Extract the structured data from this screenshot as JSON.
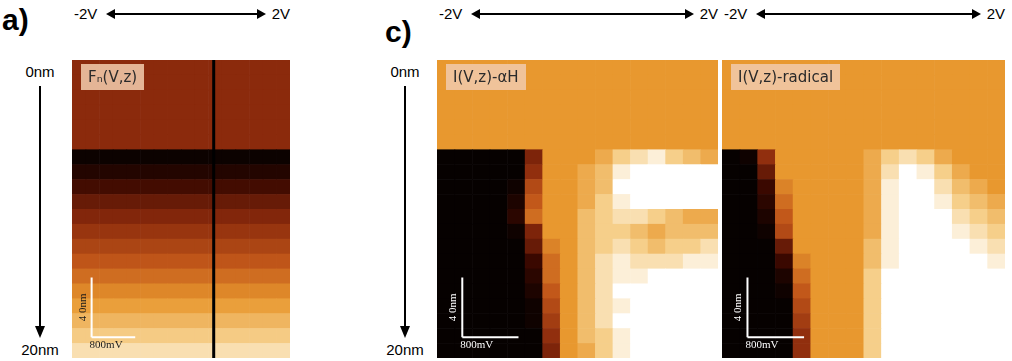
{
  "chart_data": [
    {
      "type": "heatmap",
      "title": "Fₙ(V,z)",
      "xlim": [
        -2,
        2
      ],
      "ylim": [
        0,
        20
      ],
      "tick_labels": false,
      "x_bins": [
        -2,
        -1.75,
        -1.5,
        -1.25,
        -1,
        -0.75,
        -0.5,
        -0.25,
        0,
        0.25,
        0.5,
        0.75,
        1,
        1.25,
        1.5,
        1.75,
        2
      ],
      "y_bins": [
        0,
        1,
        2,
        3,
        4,
        5,
        6,
        7,
        8,
        9,
        10,
        11,
        12,
        13,
        14,
        15,
        16,
        17,
        18,
        19,
        20
      ],
      "color_range": [
        0,
        1
      ],
      "cells": [
        [
          0.38,
          0.38,
          0.38,
          0.38,
          0.38,
          0.38,
          0.38,
          0.38,
          0.38,
          0.38,
          0.38,
          0.38,
          0.38,
          0.38,
          0.38,
          0.38
        ],
        [
          0.38,
          0.38,
          0.38,
          0.38,
          0.38,
          0.38,
          0.38,
          0.38,
          0.38,
          0.38,
          0.38,
          0.38,
          0.38,
          0.38,
          0.38,
          0.38
        ],
        [
          0.38,
          0.38,
          0.38,
          0.38,
          0.38,
          0.38,
          0.38,
          0.38,
          0.38,
          0.38,
          0.38,
          0.38,
          0.38,
          0.38,
          0.38,
          0.38
        ],
        [
          0.38,
          0.38,
          0.38,
          0.38,
          0.38,
          0.38,
          0.38,
          0.38,
          0.38,
          0.38,
          0.38,
          0.38,
          0.38,
          0.38,
          0.38,
          0.38
        ],
        [
          0.38,
          0.38,
          0.38,
          0.38,
          0.38,
          0.38,
          0.38,
          0.38,
          0.38,
          0.38,
          0.38,
          0.38,
          0.38,
          0.38,
          0.38,
          0.38
        ],
        [
          0.38,
          0.38,
          0.38,
          0.38,
          0.38,
          0.38,
          0.38,
          0.38,
          0.38,
          0.38,
          0.38,
          0.38,
          0.38,
          0.38,
          0.38,
          0.38
        ],
        [
          0.04,
          0.04,
          0.04,
          0.04,
          0.04,
          0.04,
          0.04,
          0.04,
          0.04,
          0.04,
          0.04,
          0.04,
          0.04,
          0.04,
          0.04,
          0.04
        ],
        [
          0.12,
          0.12,
          0.12,
          0.12,
          0.12,
          0.12,
          0.12,
          0.12,
          0.12,
          0.12,
          0.12,
          0.12,
          0.12,
          0.12,
          0.12,
          0.12
        ],
        [
          0.22,
          0.22,
          0.22,
          0.22,
          0.22,
          0.22,
          0.22,
          0.22,
          0.22,
          0.22,
          0.22,
          0.22,
          0.22,
          0.22,
          0.22,
          0.22
        ],
        [
          0.3,
          0.3,
          0.3,
          0.3,
          0.3,
          0.3,
          0.3,
          0.3,
          0.3,
          0.3,
          0.3,
          0.3,
          0.3,
          0.3,
          0.3,
          0.3
        ],
        [
          0.36,
          0.36,
          0.36,
          0.36,
          0.36,
          0.36,
          0.36,
          0.36,
          0.36,
          0.36,
          0.36,
          0.36,
          0.36,
          0.36,
          0.36,
          0.36
        ],
        [
          0.42,
          0.42,
          0.42,
          0.42,
          0.42,
          0.42,
          0.42,
          0.42,
          0.42,
          0.42,
          0.42,
          0.42,
          0.42,
          0.42,
          0.42,
          0.42
        ],
        [
          0.48,
          0.48,
          0.48,
          0.48,
          0.48,
          0.48,
          0.48,
          0.48,
          0.48,
          0.48,
          0.48,
          0.48,
          0.48,
          0.48,
          0.48,
          0.48
        ],
        [
          0.54,
          0.54,
          0.54,
          0.54,
          0.54,
          0.54,
          0.54,
          0.54,
          0.54,
          0.54,
          0.54,
          0.54,
          0.54,
          0.54,
          0.54,
          0.54
        ],
        [
          0.6,
          0.6,
          0.6,
          0.6,
          0.6,
          0.6,
          0.6,
          0.6,
          0.6,
          0.6,
          0.6,
          0.6,
          0.6,
          0.6,
          0.6,
          0.6
        ],
        [
          0.66,
          0.66,
          0.66,
          0.66,
          0.66,
          0.66,
          0.66,
          0.66,
          0.66,
          0.66,
          0.66,
          0.66,
          0.66,
          0.66,
          0.66,
          0.66
        ],
        [
          0.72,
          0.72,
          0.72,
          0.72,
          0.72,
          0.72,
          0.72,
          0.72,
          0.72,
          0.72,
          0.72,
          0.72,
          0.72,
          0.72,
          0.72,
          0.72
        ],
        [
          0.78,
          0.78,
          0.78,
          0.78,
          0.78,
          0.78,
          0.78,
          0.78,
          0.78,
          0.78,
          0.78,
          0.78,
          0.78,
          0.78,
          0.78,
          0.78
        ],
        [
          0.84,
          0.84,
          0.84,
          0.84,
          0.84,
          0.84,
          0.84,
          0.84,
          0.84,
          0.84,
          0.84,
          0.84,
          0.84,
          0.84,
          0.84,
          0.84
        ],
        [
          0.9,
          0.9,
          0.9,
          0.9,
          0.9,
          0.9,
          0.9,
          0.9,
          0.9,
          0.9,
          0.9,
          0.9,
          0.9,
          0.9,
          0.9,
          0.9
        ]
      ],
      "series": [
        {
          "type": "line",
          "x": [
            0.6,
            0.6
          ],
          "values": [
            0,
            20
          ],
          "color": "#000000"
        }
      ],
      "annotations": {
        "panel": "a)",
        "x_arrow": [
          "-2V",
          "2V"
        ],
        "y_arrow": [
          "0nm",
          "20nm"
        ]
      },
      "scale_bars": {
        "x": 0.8,
        "x_label": "800mV",
        "y": 4,
        "y_label": "4 0nm"
      }
    },
    {
      "type": "heatmap",
      "title": "I(V,z)-αH",
      "xlim": [
        -2,
        2
      ],
      "ylim": [
        0,
        20
      ],
      "tick_labels": false,
      "x_bins": [
        -2,
        -1.75,
        -1.5,
        -1.25,
        -1,
        -0.75,
        -0.5,
        -0.25,
        0,
        0.25,
        0.5,
        0.75,
        1,
        1.25,
        1.5,
        1.75,
        2
      ],
      "y_bins": [
        0,
        1,
        2,
        3,
        4,
        5,
        6,
        7,
        8,
        9,
        10,
        11,
        12,
        13,
        14,
        15,
        16,
        17,
        18,
        19,
        20
      ],
      "color_range": [
        0,
        1
      ],
      "cells": [
        [
          0.7,
          0.7,
          0.7,
          0.7,
          0.7,
          0.7,
          0.7,
          0.7,
          0.7,
          0.7,
          0.7,
          0.7,
          0.7,
          0.7,
          0.7,
          0.7
        ],
        [
          0.7,
          0.7,
          0.7,
          0.7,
          0.7,
          0.7,
          0.7,
          0.7,
          0.7,
          0.7,
          0.7,
          0.7,
          0.7,
          0.7,
          0.7,
          0.7
        ],
        [
          0.7,
          0.7,
          0.7,
          0.7,
          0.7,
          0.7,
          0.7,
          0.7,
          0.7,
          0.7,
          0.7,
          0.7,
          0.7,
          0.7,
          0.7,
          0.7
        ],
        [
          0.7,
          0.7,
          0.7,
          0.7,
          0.7,
          0.7,
          0.7,
          0.7,
          0.7,
          0.7,
          0.7,
          0.7,
          0.7,
          0.7,
          0.7,
          0.7
        ],
        [
          0.7,
          0.7,
          0.7,
          0.7,
          0.7,
          0.7,
          0.7,
          0.7,
          0.7,
          0.7,
          0.7,
          0.7,
          0.7,
          0.7,
          0.7,
          0.7
        ],
        [
          0.7,
          0.7,
          0.7,
          0.7,
          0.7,
          0.7,
          0.7,
          0.7,
          0.7,
          0.7,
          0.7,
          0.7,
          0.7,
          0.7,
          0.7,
          0.7
        ],
        [
          0.02,
          0.02,
          0.02,
          0.02,
          0.02,
          0.35,
          0.7,
          0.7,
          0.7,
          0.75,
          0.85,
          0.9,
          0.95,
          0.85,
          0.8,
          0.75
        ],
        [
          0.02,
          0.02,
          0.02,
          0.02,
          0.02,
          0.4,
          0.7,
          0.7,
          0.75,
          0.8,
          0.95,
          1,
          1,
          1,
          1,
          1
        ],
        [
          0.02,
          0.02,
          0.02,
          0.02,
          0.05,
          0.5,
          0.7,
          0.7,
          0.75,
          0.8,
          1,
          1,
          1,
          1,
          1,
          1
        ],
        [
          0.02,
          0.02,
          0.02,
          0.02,
          0.1,
          0.55,
          0.7,
          0.7,
          0.75,
          0.85,
          0.95,
          1,
          1,
          1,
          1,
          1
        ],
        [
          0.02,
          0.02,
          0.02,
          0.02,
          0.15,
          0.6,
          0.7,
          0.7,
          0.8,
          0.85,
          0.9,
          0.9,
          0.85,
          0.8,
          0.75,
          0.75
        ],
        [
          0.02,
          0.02,
          0.02,
          0.02,
          0.05,
          0.35,
          0.7,
          0.7,
          0.8,
          0.85,
          0.85,
          0.8,
          0.75,
          0.8,
          0.8,
          0.8
        ],
        [
          0.02,
          0.02,
          0.02,
          0.02,
          0.02,
          0.3,
          0.65,
          0.7,
          0.8,
          0.85,
          0.9,
          0.85,
          0.8,
          0.85,
          0.85,
          0.9
        ],
        [
          0.02,
          0.02,
          0.02,
          0.02,
          0.02,
          0.2,
          0.6,
          0.7,
          0.8,
          0.9,
          0.95,
          0.9,
          0.9,
          0.9,
          0.95,
          0.95
        ],
        [
          0.02,
          0.02,
          0.02,
          0.02,
          0.02,
          0.15,
          0.6,
          0.7,
          0.8,
          0.9,
          0.95,
          0.95,
          1,
          1,
          1,
          1
        ],
        [
          0.02,
          0.02,
          0.02,
          0.02,
          0.02,
          0.1,
          0.55,
          0.7,
          0.8,
          0.9,
          1,
          1,
          1,
          1,
          1,
          1
        ],
        [
          0.02,
          0.02,
          0.02,
          0.02,
          0.02,
          0.05,
          0.5,
          0.7,
          0.8,
          0.9,
          0.95,
          1,
          1,
          1,
          1,
          1
        ],
        [
          0.02,
          0.02,
          0.02,
          0.02,
          0.02,
          0.05,
          0.45,
          0.7,
          0.8,
          0.9,
          1,
          1,
          1,
          1,
          1,
          1
        ],
        [
          0.02,
          0.02,
          0.02,
          0.02,
          0.02,
          0.02,
          0.4,
          0.7,
          0.8,
          0.85,
          0.95,
          1,
          1,
          1,
          1,
          1
        ],
        [
          0.02,
          0.02,
          0.02,
          0.02,
          0.02,
          0.02,
          0.35,
          0.7,
          0.75,
          0.85,
          0.95,
          1,
          1,
          1,
          1,
          1
        ]
      ],
      "annotations": {
        "panel": "c)",
        "x_arrow": [
          "-2V",
          "2V"
        ],
        "y_arrow": [
          "0nm",
          "20nm"
        ]
      },
      "scale_bars": {
        "x": 0.8,
        "x_label": "800mV",
        "y": 4,
        "y_label": "4 0nm"
      }
    },
    {
      "type": "heatmap",
      "title": "I(V,z)-radical",
      "xlim": [
        -2,
        2
      ],
      "ylim": [
        0,
        20
      ],
      "tick_labels": false,
      "x_bins": [
        -2,
        -1.75,
        -1.5,
        -1.25,
        -1,
        -0.75,
        -0.5,
        -0.25,
        0,
        0.25,
        0.5,
        0.75,
        1,
        1.25,
        1.5,
        1.75,
        2
      ],
      "y_bins": [
        0,
        1,
        2,
        3,
        4,
        5,
        6,
        7,
        8,
        9,
        10,
        11,
        12,
        13,
        14,
        15,
        16,
        17,
        18,
        19,
        20
      ],
      "color_range": [
        0,
        1
      ],
      "cells": [
        [
          0.7,
          0.7,
          0.7,
          0.7,
          0.7,
          0.7,
          0.7,
          0.7,
          0.7,
          0.7,
          0.7,
          0.7,
          0.7,
          0.7,
          0.7,
          0.7
        ],
        [
          0.7,
          0.7,
          0.7,
          0.7,
          0.7,
          0.7,
          0.7,
          0.7,
          0.7,
          0.7,
          0.7,
          0.7,
          0.7,
          0.7,
          0.7,
          0.7
        ],
        [
          0.7,
          0.7,
          0.7,
          0.7,
          0.7,
          0.7,
          0.7,
          0.7,
          0.7,
          0.7,
          0.7,
          0.7,
          0.7,
          0.7,
          0.7,
          0.7
        ],
        [
          0.7,
          0.7,
          0.7,
          0.7,
          0.7,
          0.7,
          0.7,
          0.7,
          0.7,
          0.7,
          0.7,
          0.7,
          0.7,
          0.7,
          0.7,
          0.7
        ],
        [
          0.7,
          0.7,
          0.7,
          0.7,
          0.7,
          0.7,
          0.7,
          0.7,
          0.7,
          0.7,
          0.7,
          0.7,
          0.7,
          0.7,
          0.7,
          0.7
        ],
        [
          0.7,
          0.7,
          0.7,
          0.7,
          0.7,
          0.7,
          0.7,
          0.7,
          0.7,
          0.7,
          0.7,
          0.7,
          0.7,
          0.7,
          0.7,
          0.7
        ],
        [
          0.02,
          0.05,
          0.4,
          0.7,
          0.7,
          0.7,
          0.7,
          0.7,
          0.75,
          0.85,
          0.9,
          0.85,
          0.75,
          0.7,
          0.7,
          0.7
        ],
        [
          0.02,
          0.02,
          0.3,
          0.7,
          0.7,
          0.7,
          0.7,
          0.7,
          0.75,
          0.9,
          1,
          0.95,
          0.85,
          0.75,
          0.7,
          0.7
        ],
        [
          0.02,
          0.02,
          0.2,
          0.65,
          0.7,
          0.7,
          0.7,
          0.7,
          0.75,
          0.95,
          1,
          1,
          0.9,
          0.8,
          0.75,
          0.7
        ],
        [
          0.02,
          0.02,
          0.15,
          0.6,
          0.7,
          0.7,
          0.7,
          0.7,
          0.75,
          0.95,
          1,
          1,
          0.95,
          0.85,
          0.8,
          0.75
        ],
        [
          0.02,
          0.02,
          0.1,
          0.55,
          0.7,
          0.7,
          0.7,
          0.7,
          0.75,
          0.95,
          1,
          1,
          1,
          0.9,
          0.85,
          0.8
        ],
        [
          0.02,
          0.02,
          0.05,
          0.5,
          0.7,
          0.7,
          0.7,
          0.7,
          0.75,
          0.95,
          1,
          1,
          1,
          0.95,
          0.9,
          0.85
        ],
        [
          0.02,
          0.02,
          0.02,
          0.3,
          0.7,
          0.7,
          0.7,
          0.7,
          0.8,
          0.95,
          1,
          1,
          1,
          1,
          0.95,
          0.9
        ],
        [
          0.02,
          0.02,
          0.02,
          0.2,
          0.65,
          0.7,
          0.7,
          0.7,
          0.8,
          0.95,
          1,
          1,
          1,
          1,
          1,
          0.95
        ],
        [
          0.02,
          0.02,
          0.02,
          0.1,
          0.6,
          0.7,
          0.7,
          0.7,
          0.85,
          1,
          1,
          1,
          1,
          1,
          1,
          1
        ],
        [
          0.02,
          0.02,
          0.02,
          0.05,
          0.55,
          0.7,
          0.7,
          0.7,
          0.85,
          1,
          1,
          1,
          1,
          1,
          1,
          1
        ],
        [
          0.02,
          0.02,
          0.02,
          0.02,
          0.5,
          0.7,
          0.7,
          0.7,
          0.85,
          1,
          1,
          1,
          1,
          1,
          1,
          1
        ],
        [
          0.02,
          0.02,
          0.02,
          0.02,
          0.45,
          0.7,
          0.7,
          0.7,
          0.85,
          1,
          1,
          1,
          1,
          1,
          1,
          1
        ],
        [
          0.02,
          0.02,
          0.02,
          0.02,
          0.4,
          0.7,
          0.7,
          0.7,
          0.85,
          1,
          1,
          1,
          1,
          1,
          1,
          1
        ],
        [
          0.02,
          0.02,
          0.02,
          0.02,
          0.4,
          0.7,
          0.7,
          0.7,
          0.85,
          1,
          1,
          1,
          1,
          1,
          1,
          1
        ]
      ],
      "annotations": {
        "x_arrow": [
          "-2V",
          "2V"
        ]
      },
      "scale_bars": {
        "x": 0.8,
        "x_label": "800mV",
        "y": 4,
        "y_label": "4 0nm"
      }
    }
  ]
}
